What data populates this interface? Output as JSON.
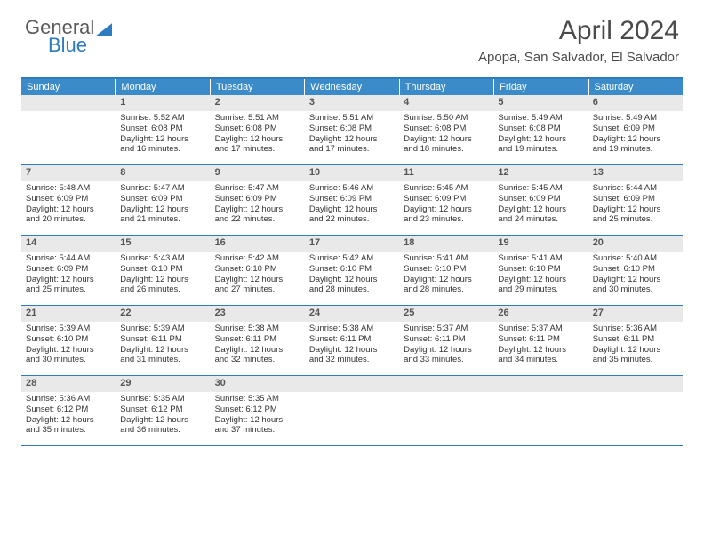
{
  "logo": {
    "text1": "General",
    "text2": "Blue"
  },
  "title": "April 2024",
  "location": "Apopa, San Salvador, El Salvador",
  "colors": {
    "header_bg": "#3b8bc9",
    "border": "#2f7bbf",
    "daynum_bg": "#e9e9e9",
    "logo_blue": "#2f7bbf",
    "logo_gray": "#5a5a5a"
  },
  "weekdays": [
    "Sunday",
    "Monday",
    "Tuesday",
    "Wednesday",
    "Thursday",
    "Friday",
    "Saturday"
  ],
  "weeks": [
    [
      {
        "num": "",
        "lines": []
      },
      {
        "num": "1",
        "lines": [
          "Sunrise: 5:52 AM",
          "Sunset: 6:08 PM",
          "Daylight: 12 hours",
          "and 16 minutes."
        ]
      },
      {
        "num": "2",
        "lines": [
          "Sunrise: 5:51 AM",
          "Sunset: 6:08 PM",
          "Daylight: 12 hours",
          "and 17 minutes."
        ]
      },
      {
        "num": "3",
        "lines": [
          "Sunrise: 5:51 AM",
          "Sunset: 6:08 PM",
          "Daylight: 12 hours",
          "and 17 minutes."
        ]
      },
      {
        "num": "4",
        "lines": [
          "Sunrise: 5:50 AM",
          "Sunset: 6:08 PM",
          "Daylight: 12 hours",
          "and 18 minutes."
        ]
      },
      {
        "num": "5",
        "lines": [
          "Sunrise: 5:49 AM",
          "Sunset: 6:08 PM",
          "Daylight: 12 hours",
          "and 19 minutes."
        ]
      },
      {
        "num": "6",
        "lines": [
          "Sunrise: 5:49 AM",
          "Sunset: 6:09 PM",
          "Daylight: 12 hours",
          "and 19 minutes."
        ]
      }
    ],
    [
      {
        "num": "7",
        "lines": [
          "Sunrise: 5:48 AM",
          "Sunset: 6:09 PM",
          "Daylight: 12 hours",
          "and 20 minutes."
        ]
      },
      {
        "num": "8",
        "lines": [
          "Sunrise: 5:47 AM",
          "Sunset: 6:09 PM",
          "Daylight: 12 hours",
          "and 21 minutes."
        ]
      },
      {
        "num": "9",
        "lines": [
          "Sunrise: 5:47 AM",
          "Sunset: 6:09 PM",
          "Daylight: 12 hours",
          "and 22 minutes."
        ]
      },
      {
        "num": "10",
        "lines": [
          "Sunrise: 5:46 AM",
          "Sunset: 6:09 PM",
          "Daylight: 12 hours",
          "and 22 minutes."
        ]
      },
      {
        "num": "11",
        "lines": [
          "Sunrise: 5:45 AM",
          "Sunset: 6:09 PM",
          "Daylight: 12 hours",
          "and 23 minutes."
        ]
      },
      {
        "num": "12",
        "lines": [
          "Sunrise: 5:45 AM",
          "Sunset: 6:09 PM",
          "Daylight: 12 hours",
          "and 24 minutes."
        ]
      },
      {
        "num": "13",
        "lines": [
          "Sunrise: 5:44 AM",
          "Sunset: 6:09 PM",
          "Daylight: 12 hours",
          "and 25 minutes."
        ]
      }
    ],
    [
      {
        "num": "14",
        "lines": [
          "Sunrise: 5:44 AM",
          "Sunset: 6:09 PM",
          "Daylight: 12 hours",
          "and 25 minutes."
        ]
      },
      {
        "num": "15",
        "lines": [
          "Sunrise: 5:43 AM",
          "Sunset: 6:10 PM",
          "Daylight: 12 hours",
          "and 26 minutes."
        ]
      },
      {
        "num": "16",
        "lines": [
          "Sunrise: 5:42 AM",
          "Sunset: 6:10 PM",
          "Daylight: 12 hours",
          "and 27 minutes."
        ]
      },
      {
        "num": "17",
        "lines": [
          "Sunrise: 5:42 AM",
          "Sunset: 6:10 PM",
          "Daylight: 12 hours",
          "and 28 minutes."
        ]
      },
      {
        "num": "18",
        "lines": [
          "Sunrise: 5:41 AM",
          "Sunset: 6:10 PM",
          "Daylight: 12 hours",
          "and 28 minutes."
        ]
      },
      {
        "num": "19",
        "lines": [
          "Sunrise: 5:41 AM",
          "Sunset: 6:10 PM",
          "Daylight: 12 hours",
          "and 29 minutes."
        ]
      },
      {
        "num": "20",
        "lines": [
          "Sunrise: 5:40 AM",
          "Sunset: 6:10 PM",
          "Daylight: 12 hours",
          "and 30 minutes."
        ]
      }
    ],
    [
      {
        "num": "21",
        "lines": [
          "Sunrise: 5:39 AM",
          "Sunset: 6:10 PM",
          "Daylight: 12 hours",
          "and 30 minutes."
        ]
      },
      {
        "num": "22",
        "lines": [
          "Sunrise: 5:39 AM",
          "Sunset: 6:11 PM",
          "Daylight: 12 hours",
          "and 31 minutes."
        ]
      },
      {
        "num": "23",
        "lines": [
          "Sunrise: 5:38 AM",
          "Sunset: 6:11 PM",
          "Daylight: 12 hours",
          "and 32 minutes."
        ]
      },
      {
        "num": "24",
        "lines": [
          "Sunrise: 5:38 AM",
          "Sunset: 6:11 PM",
          "Daylight: 12 hours",
          "and 32 minutes."
        ]
      },
      {
        "num": "25",
        "lines": [
          "Sunrise: 5:37 AM",
          "Sunset: 6:11 PM",
          "Daylight: 12 hours",
          "and 33 minutes."
        ]
      },
      {
        "num": "26",
        "lines": [
          "Sunrise: 5:37 AM",
          "Sunset: 6:11 PM",
          "Daylight: 12 hours",
          "and 34 minutes."
        ]
      },
      {
        "num": "27",
        "lines": [
          "Sunrise: 5:36 AM",
          "Sunset: 6:11 PM",
          "Daylight: 12 hours",
          "and 35 minutes."
        ]
      }
    ],
    [
      {
        "num": "28",
        "lines": [
          "Sunrise: 5:36 AM",
          "Sunset: 6:12 PM",
          "Daylight: 12 hours",
          "and 35 minutes."
        ]
      },
      {
        "num": "29",
        "lines": [
          "Sunrise: 5:35 AM",
          "Sunset: 6:12 PM",
          "Daylight: 12 hours",
          "and 36 minutes."
        ]
      },
      {
        "num": "30",
        "lines": [
          "Sunrise: 5:35 AM",
          "Sunset: 6:12 PM",
          "Daylight: 12 hours",
          "and 37 minutes."
        ]
      },
      {
        "num": "",
        "lines": []
      },
      {
        "num": "",
        "lines": []
      },
      {
        "num": "",
        "lines": []
      },
      {
        "num": "",
        "lines": []
      }
    ]
  ]
}
